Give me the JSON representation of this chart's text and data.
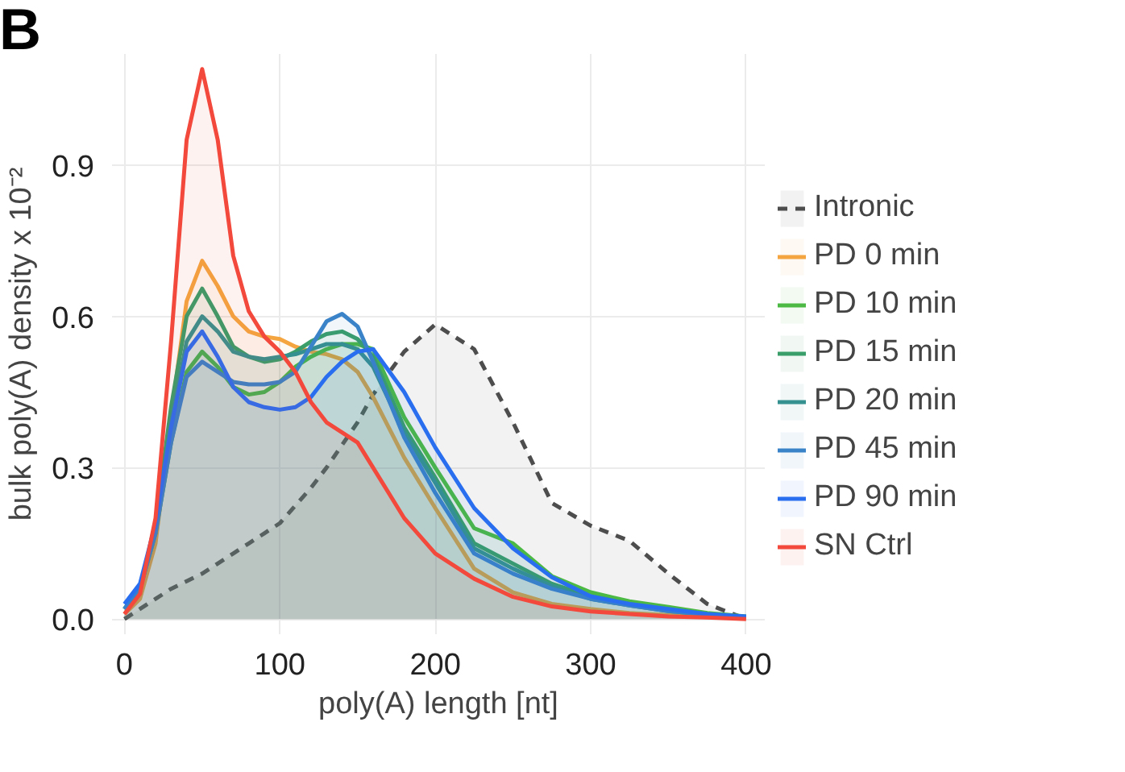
{
  "chart_data": {
    "type": "area",
    "annotations": [
      "B"
    ],
    "xlabel": "poly(A) length [nt]",
    "ylabel": "bulk poly(A) density x 10⁻²",
    "x": [
      0,
      10,
      20,
      30,
      40,
      50,
      60,
      70,
      80,
      90,
      100,
      110,
      120,
      130,
      140,
      150,
      160,
      180,
      200,
      225,
      250,
      275,
      300,
      325,
      350,
      375,
      400
    ],
    "xlim": [
      -8,
      412
    ],
    "ylim": [
      -0.03,
      1.12
    ],
    "xticks": [
      0,
      100,
      200,
      300,
      400
    ],
    "yticks": [
      {
        "value": 0,
        "label": "0.0"
      },
      {
        "value": 0.3,
        "label": "0.3"
      },
      {
        "value": 0.6,
        "label": "0.6"
      },
      {
        "value": 0.9,
        "label": "0.9"
      }
    ],
    "grid": true,
    "legend": "right",
    "series": [
      {
        "name": "Intronic",
        "color": "#4d4d4d",
        "line_style": "dashed",
        "values": [
          0.0,
          0.02,
          0.04,
          0.06,
          0.075,
          0.09,
          0.11,
          0.13,
          0.15,
          0.17,
          0.19,
          0.225,
          0.26,
          0.3,
          0.345,
          0.39,
          0.445,
          0.53,
          0.584,
          0.535,
          0.39,
          0.23,
          0.185,
          0.155,
          0.09,
          0.03,
          0.0
        ]
      },
      {
        "name": "PD 0 min",
        "color": "#f4a540",
        "values": [
          0.01,
          0.04,
          0.15,
          0.4,
          0.63,
          0.71,
          0.66,
          0.6,
          0.57,
          0.56,
          0.555,
          0.54,
          0.53,
          0.525,
          0.515,
          0.49,
          0.44,
          0.32,
          0.22,
          0.1,
          0.053,
          0.03,
          0.02,
          0.012,
          0.008,
          0.004,
          0.002
        ]
      },
      {
        "name": "PD 10 min",
        "color": "#4cb944",
        "values": [
          0.02,
          0.06,
          0.17,
          0.35,
          0.49,
          0.53,
          0.5,
          0.46,
          0.445,
          0.45,
          0.47,
          0.5,
          0.52,
          0.535,
          0.545,
          0.545,
          0.535,
          0.4,
          0.3,
          0.18,
          0.15,
          0.085,
          0.053,
          0.035,
          0.024,
          0.012,
          0.005
        ]
      },
      {
        "name": "PD 15 min",
        "color": "#3a9e6a",
        "values": [
          0.02,
          0.06,
          0.19,
          0.42,
          0.6,
          0.655,
          0.6,
          0.54,
          0.52,
          0.51,
          0.515,
          0.53,
          0.55,
          0.565,
          0.57,
          0.555,
          0.52,
          0.38,
          0.28,
          0.15,
          0.11,
          0.07,
          0.045,
          0.03,
          0.018,
          0.01,
          0.004
        ]
      },
      {
        "name": "PD 20 min",
        "color": "#35918f",
        "values": [
          0.02,
          0.06,
          0.18,
          0.39,
          0.55,
          0.6,
          0.57,
          0.53,
          0.52,
          0.515,
          0.52,
          0.525,
          0.535,
          0.545,
          0.545,
          0.535,
          0.5,
          0.37,
          0.27,
          0.14,
          0.1,
          0.065,
          0.04,
          0.027,
          0.016,
          0.009,
          0.004
        ]
      },
      {
        "name": "PD 45 min",
        "color": "#3a83c8",
        "values": [
          0.02,
          0.06,
          0.17,
          0.35,
          0.48,
          0.51,
          0.49,
          0.47,
          0.465,
          0.465,
          0.47,
          0.49,
          0.54,
          0.59,
          0.605,
          0.58,
          0.51,
          0.36,
          0.25,
          0.13,
          0.09,
          0.06,
          0.04,
          0.027,
          0.016,
          0.009,
          0.004
        ]
      },
      {
        "name": "PD 90 min",
        "color": "#2a6ef0",
        "values": [
          0.03,
          0.07,
          0.19,
          0.38,
          0.53,
          0.57,
          0.52,
          0.46,
          0.43,
          0.42,
          0.415,
          0.42,
          0.44,
          0.48,
          0.51,
          0.53,
          0.535,
          0.45,
          0.34,
          0.22,
          0.14,
          0.083,
          0.045,
          0.03,
          0.02,
          0.01,
          0.005
        ]
      },
      {
        "name": "SN Ctrl",
        "color": "#f2493c",
        "values": [
          0.01,
          0.05,
          0.2,
          0.55,
          0.95,
          1.09,
          0.95,
          0.72,
          0.61,
          0.56,
          0.53,
          0.49,
          0.43,
          0.39,
          0.37,
          0.35,
          0.3,
          0.2,
          0.13,
          0.08,
          0.044,
          0.025,
          0.015,
          0.01,
          0.005,
          0.003,
          0.0
        ]
      }
    ]
  }
}
